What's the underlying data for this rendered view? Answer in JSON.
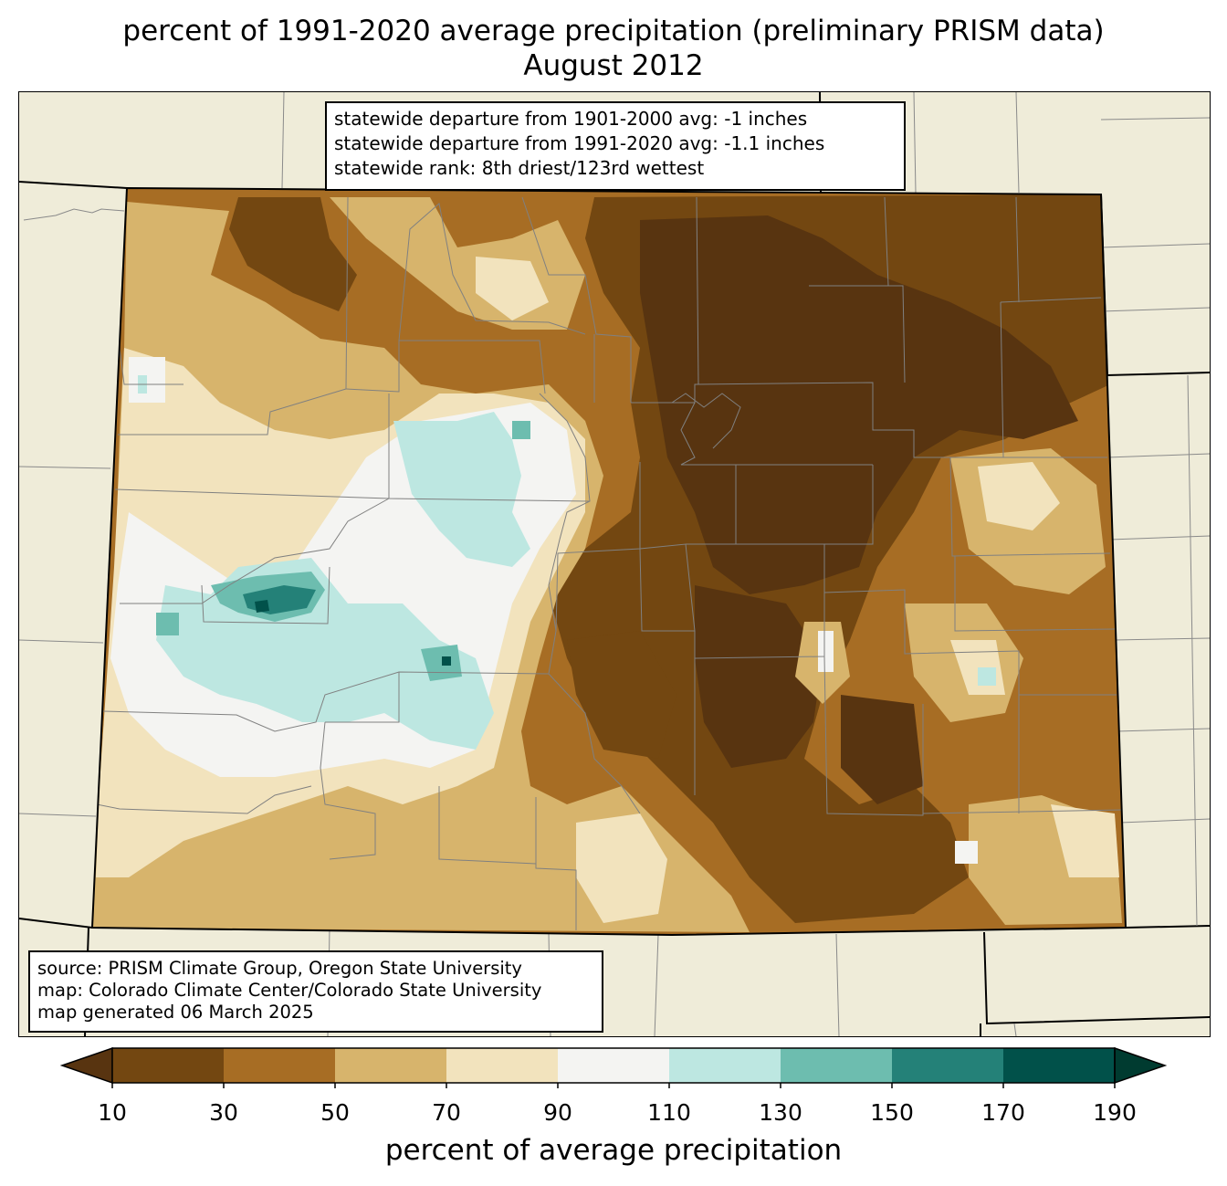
{
  "title": {
    "line1": "percent of 1991-2020 average precipitation (preliminary PRISM data)",
    "line2": "August 2012"
  },
  "stats": {
    "line1": "statewide departure from 1901-2000 avg: -1 inches",
    "line2": "statewide departure from 1991-2020 avg: -1.1 inches",
    "line3": "statewide rank: 8th driest/123rd wettest"
  },
  "source": {
    "line1": "source: PRISM Climate Group, Oregon State University",
    "line2": "map: Colorado Climate Center/Colorado State University",
    "line3": "map generated 06 March 2025"
  },
  "colorbar": {
    "label": "percent of average precipitation",
    "ticks": [
      "10",
      "30",
      "50",
      "70",
      "90",
      "110",
      "130",
      "150",
      "170",
      "190"
    ],
    "colors": [
      "#734711",
      "#a76d24",
      "#d7b46c",
      "#f2e3bd",
      "#f4f4f2",
      "#bde7e1",
      "#6dbdaf",
      "#248178",
      "#01514a"
    ],
    "under_color": "#583410",
    "over_color": "#003b30"
  },
  "map_colors": {
    "background": "#efecd9",
    "borders": "#000000",
    "counties": "#808080"
  }
}
